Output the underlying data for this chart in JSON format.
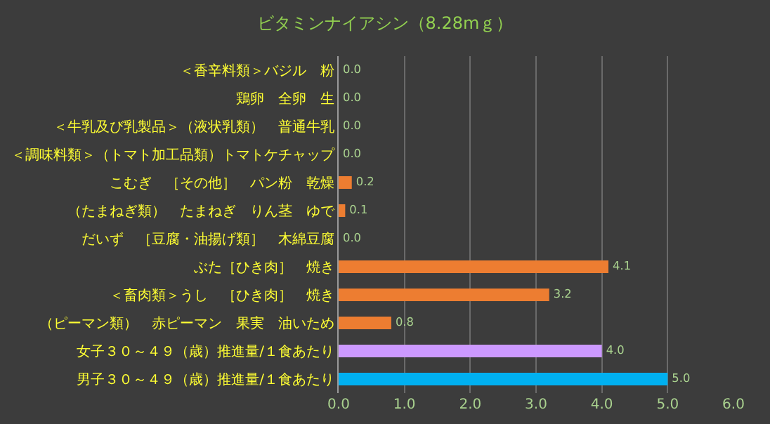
{
  "chart_data": {
    "type": "bar",
    "orientation": "horizontal",
    "title": "ビタミンナイアシン（8.28mｇ）",
    "categories": [
      "＜香辛料類＞バジル　粉",
      "鶏卵　全卵　生",
      "＜牛乳及び乳製品＞（液状乳類）　普通牛乳",
      "＜調味料類＞（トマト加工品類）トマトケチャップ",
      "こむぎ　［その他］　パン粉　乾燥",
      "（たまねぎ類）　たまねぎ　りん茎　ゆで",
      "だいず　［豆腐・油揚げ類］　木綿豆腐",
      "ぶた［ひき肉］　焼き",
      "＜畜肉類＞うし　［ひき肉］　焼き",
      "（ピーマン類）　赤ピーマン　果実　油いため",
      "女子３０～４９（歳）推進量/１食あたり",
      "男子３０～４９（歳）推進量/１食あたり"
    ],
    "values": [
      0.0,
      0.0,
      0.0,
      0.0,
      0.2,
      0.1,
      0.0,
      4.1,
      3.2,
      0.8,
      4.0,
      5.0
    ],
    "colors": [
      "#ed7d31",
      "#ed7d31",
      "#ed7d31",
      "#ed7d31",
      "#ed7d31",
      "#ed7d31",
      "#ed7d31",
      "#ed7d31",
      "#ed7d31",
      "#ed7d31",
      "#cc99ff",
      "#00b0f0"
    ],
    "xlim": [
      0,
      6
    ],
    "xticks": [
      {
        "value": 0,
        "label": "0.0"
      },
      {
        "value": 1,
        "label": "1.0"
      },
      {
        "value": 2,
        "label": "2.0"
      },
      {
        "value": 3,
        "label": "3.0"
      },
      {
        "value": 4,
        "label": "4.0"
      },
      {
        "value": 5,
        "label": "5.0"
      },
      {
        "value": 6,
        "label": "6.0"
      }
    ],
    "value_labels": [
      "0.0",
      "0.0",
      "0.0",
      "0.0",
      "0.2",
      "0.1",
      "0.0",
      "4.1",
      "3.2",
      "0.8",
      "4.0",
      "5.0"
    ],
    "grid": "x",
    "legend": false
  }
}
